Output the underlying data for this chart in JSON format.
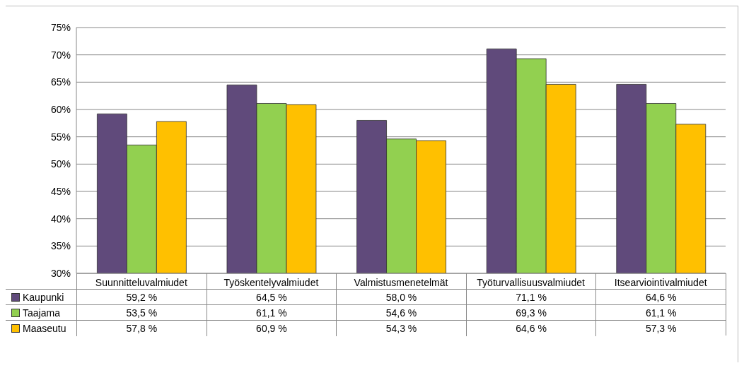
{
  "chart_data": {
    "type": "bar",
    "categories": [
      "Suunnitteluvalmiudet",
      "Työskentelyvalmiudet",
      "Valmistusmenetelmät",
      "Työturvallisuusvalmiudet",
      "Itsearviointivalmiudet"
    ],
    "series": [
      {
        "name": "Kaupunki",
        "color": "#604a7b",
        "values": [
          59.2,
          64.5,
          58.0,
          71.1,
          64.6
        ],
        "value_labels": [
          "59,2 %",
          "64,5 %",
          "58,0 %",
          "71,1 %",
          "64,6 %"
        ]
      },
      {
        "name": "Taajama",
        "color": "#92d050",
        "values": [
          53.5,
          61.1,
          54.6,
          69.3,
          61.1
        ],
        "value_labels": [
          "53,5 %",
          "61,1 %",
          "54,6 %",
          "69,3 %",
          "61,1 %"
        ]
      },
      {
        "name": "Maaseutu",
        "color": "#ffc000",
        "values": [
          57.8,
          60.9,
          54.3,
          64.6,
          57.3
        ],
        "value_labels": [
          "57,8 %",
          "60,9 %",
          "54,3 %",
          "64,6 %",
          "57,3 %"
        ]
      }
    ],
    "ylim": [
      30,
      75
    ],
    "yticks": [
      {
        "value": 30,
        "label": "30%"
      },
      {
        "value": 35,
        "label": "35%"
      },
      {
        "value": 40,
        "label": "40%"
      },
      {
        "value": 45,
        "label": "45%"
      },
      {
        "value": 50,
        "label": "50%"
      },
      {
        "value": 55,
        "label": "55%"
      },
      {
        "value": 60,
        "label": "60%"
      },
      {
        "value": 65,
        "label": "65%"
      },
      {
        "value": 70,
        "label": "70%"
      },
      {
        "value": 75,
        "label": "75%"
      }
    ],
    "grid": "y",
    "legend": "bottom left"
  }
}
